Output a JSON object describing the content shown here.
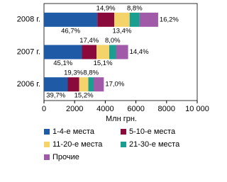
{
  "chart_data": {
    "type": "stacked-bar-horizontal",
    "categories": [
      "2008 г.",
      "2007 г.",
      "2006 г."
    ],
    "x_label": "Млн грн.",
    "xlim": [
      0,
      10000
    ],
    "xticks": [
      0,
      2000,
      4000,
      6000,
      8000,
      {
        "value": 10000,
        "label": "10 000"
      }
    ],
    "series": [
      {
        "name": "1-4-е места",
        "color": "#1f5aa6",
        "values": [
          3480,
          2475,
          1550
        ],
        "shares": [
          46.7,
          45.1,
          39.7
        ],
        "share_labels": [
          "46,7%",
          "45,1%",
          "39,7%"
        ]
      },
      {
        "name": "5-10-е места",
        "color": "#8b0a3c",
        "values": [
          1110,
          955,
          750
        ],
        "shares": [
          14.9,
          17.4,
          19.3
        ],
        "share_labels": [
          "14,9%",
          "17,4%",
          "19,3%"
        ]
      },
      {
        "name": "11-20-е места",
        "color": "#f3d36a",
        "values": [
          1000,
          830,
          595
        ],
        "shares": [
          13.4,
          15.1,
          15.2
        ],
        "share_labels": [
          "13,4%",
          "15,1%",
          "15,2%"
        ]
      },
      {
        "name": "21-30-е места",
        "color": "#1a9e8f",
        "values": [
          655,
          440,
          345
        ],
        "shares": [
          8.8,
          8.0,
          8.8
        ],
        "share_labels": [
          "8,8%",
          "8,0%",
          "8,8%"
        ]
      },
      {
        "name": "Прочие",
        "color": "#a05aa8",
        "values": [
          1205,
          790,
          665
        ],
        "shares": [
          16.2,
          14.4,
          17.0
        ],
        "share_labels": [
          "16,2%",
          "14,4%",
          "17,0%"
        ]
      }
    ]
  }
}
